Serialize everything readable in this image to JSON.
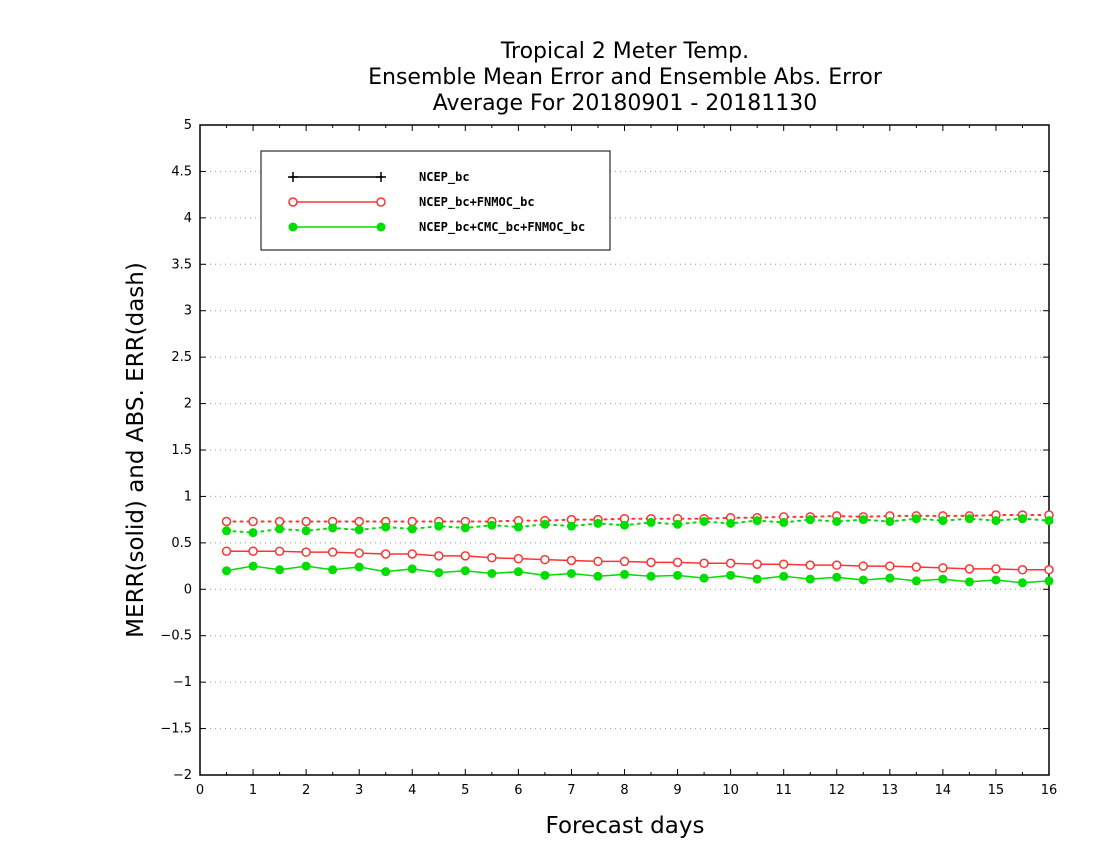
{
  "chart_data": {
    "type": "line",
    "title": [
      "Tropical 2 Meter Temp.",
      "Ensemble Mean Error and Ensemble Abs. Error",
      "Average For 20180901 - 20181130"
    ],
    "xlabel": "Forecast days",
    "ylabel": "MERR(solid) and ABS. ERR(dash)",
    "xlim": [
      0,
      16
    ],
    "ylim": [
      -2,
      5
    ],
    "xticks": [
      0,
      1,
      2,
      3,
      4,
      5,
      6,
      7,
      8,
      9,
      10,
      11,
      12,
      13,
      14,
      15,
      16
    ],
    "xtick_labels": [
      "0",
      "1",
      "2",
      "3",
      "4",
      "5",
      "6",
      "7",
      "8",
      "9",
      "10",
      "11",
      "12",
      "13",
      "14",
      "15",
      "16"
    ],
    "yticks": [
      -2,
      -1.5,
      -1,
      -0.5,
      0,
      0.5,
      1,
      1.5,
      2,
      2.5,
      3,
      3.5,
      4,
      4.5,
      5
    ],
    "ytick_labels": [
      "−2",
      "−1.5",
      "−1",
      "−0.5",
      "0",
      "0.5",
      "1",
      "1.5",
      "2",
      "2.5",
      "3",
      "3.5",
      "4",
      "4.5",
      "5"
    ],
    "grid": "horizontal dotted",
    "legend_position": "top-left",
    "x": [
      0.5,
      1,
      1.5,
      2,
      2.5,
      3,
      3.5,
      4,
      4.5,
      5,
      5.5,
      6,
      6.5,
      7,
      7.5,
      8,
      8.5,
      9,
      9.5,
      10,
      10.5,
      11,
      11.5,
      12,
      12.5,
      13,
      13.5,
      14,
      14.5,
      15,
      15.5,
      16
    ],
    "series": [
      {
        "name": "NCEP_bc",
        "color": "#000000",
        "marker": "plus",
        "mean_error": [],
        "abs_error": []
      },
      {
        "name": "NCEP_bc+FNMOC_bc",
        "color": "#ff3333",
        "marker": "open-circle",
        "mean_error": [
          0.41,
          0.41,
          0.41,
          0.4,
          0.4,
          0.39,
          0.38,
          0.38,
          0.36,
          0.36,
          0.34,
          0.33,
          0.32,
          0.31,
          0.3,
          0.3,
          0.29,
          0.29,
          0.28,
          0.28,
          0.27,
          0.27,
          0.26,
          0.26,
          0.25,
          0.25,
          0.24,
          0.23,
          0.22,
          0.22,
          0.21,
          0.21
        ],
        "abs_error": [
          0.73,
          0.73,
          0.73,
          0.73,
          0.73,
          0.73,
          0.73,
          0.73,
          0.73,
          0.73,
          0.73,
          0.74,
          0.74,
          0.75,
          0.75,
          0.76,
          0.76,
          0.76,
          0.76,
          0.77,
          0.77,
          0.78,
          0.78,
          0.79,
          0.78,
          0.79,
          0.79,
          0.79,
          0.79,
          0.8,
          0.8,
          0.8
        ]
      },
      {
        "name": "NCEP_bc+CMC_bc+FNMOC_bc",
        "color": "#00dd00",
        "marker": "filled-circle",
        "mean_error": [
          0.2,
          0.25,
          0.21,
          0.25,
          0.21,
          0.24,
          0.19,
          0.22,
          0.18,
          0.2,
          0.17,
          0.19,
          0.15,
          0.17,
          0.14,
          0.16,
          0.14,
          0.15,
          0.12,
          0.15,
          0.11,
          0.14,
          0.11,
          0.13,
          0.1,
          0.12,
          0.09,
          0.11,
          0.08,
          0.1,
          0.07,
          0.09
        ],
        "abs_error": [
          0.63,
          0.61,
          0.65,
          0.63,
          0.66,
          0.64,
          0.67,
          0.65,
          0.68,
          0.66,
          0.69,
          0.67,
          0.7,
          0.68,
          0.71,
          0.69,
          0.72,
          0.7,
          0.73,
          0.71,
          0.74,
          0.72,
          0.75,
          0.73,
          0.75,
          0.73,
          0.76,
          0.74,
          0.76,
          0.74,
          0.76,
          0.74
        ]
      }
    ]
  }
}
